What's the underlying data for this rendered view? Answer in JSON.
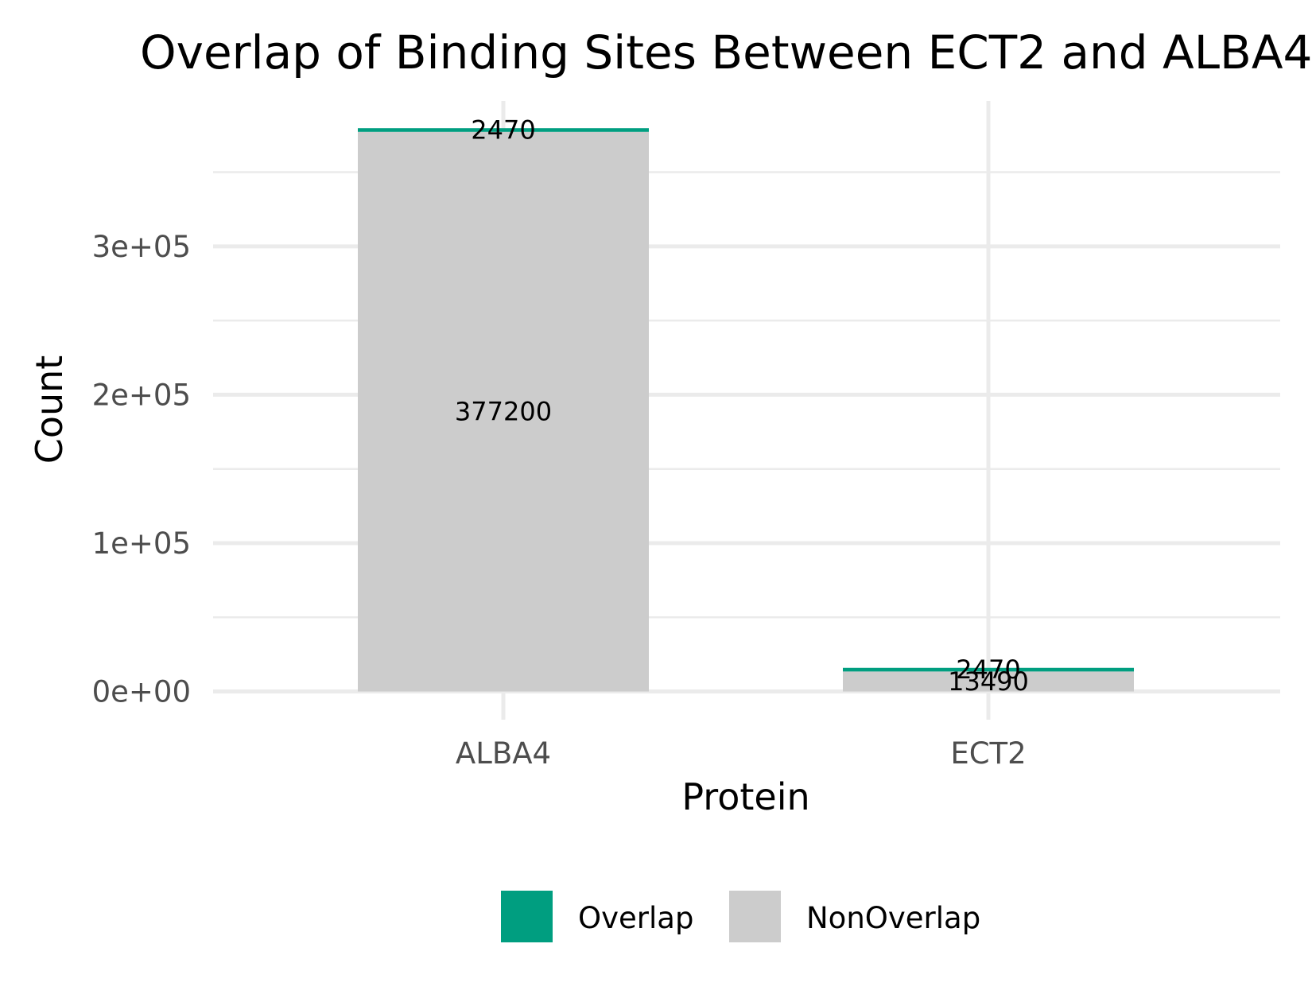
{
  "chart_data": {
    "type": "bar",
    "stacked": true,
    "title": "Overlap of Binding Sites Between ECT2 and ALBA4",
    "xlabel": "Protein",
    "ylabel": "Count",
    "categories": [
      "ALBA4",
      "ECT2"
    ],
    "series": [
      {
        "name": "Overlap",
        "color": "#009e80",
        "values": [
          2470,
          2470
        ]
      },
      {
        "name": "NonOverlap",
        "color": "#cccccc",
        "values": [
          377200,
          13490
        ]
      }
    ],
    "ylim": [
      -19000,
      398000
    ],
    "y_ticks": [
      {
        "value": 0,
        "label": "0e+00"
      },
      {
        "value": 100000,
        "label": "1e+05"
      },
      {
        "value": 200000,
        "label": "2e+05"
      },
      {
        "value": 300000,
        "label": "3e+05"
      }
    ],
    "y_minor_ticks": [
      50000,
      150000,
      250000,
      350000
    ],
    "grid": true,
    "legend_position": "bottom",
    "legend": [
      "Overlap",
      "NonOverlap"
    ]
  }
}
